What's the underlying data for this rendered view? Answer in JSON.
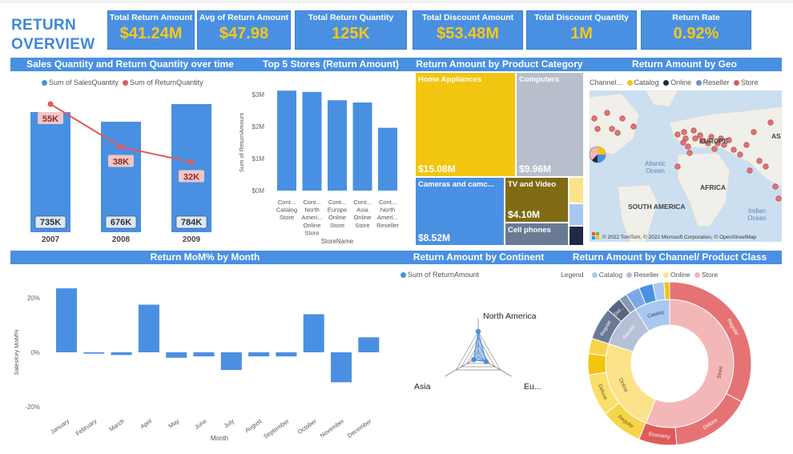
{
  "title": {
    "line1": "RETURN",
    "line2": "OVERVIEW"
  },
  "kpis": [
    {
      "label": "Total Return Amount",
      "value": "$41.24M"
    },
    {
      "label": "Avg of Return Amount",
      "value": "$47.98"
    },
    {
      "label": "Total Return Quantity",
      "value": "125K"
    },
    {
      "label": "Total Discount Amount",
      "value": "$53.48M"
    },
    {
      "label": "Total Discount Quantity",
      "value": "1M"
    },
    {
      "label": "Return Rate",
      "value": "0.92%"
    }
  ],
  "headers": {
    "sales_vs_return": "Sales Quantity and Return Quantity over time",
    "top_stores": "Top 5 Stores (Return Amount)",
    "by_category": "Return Amount by Product Category",
    "by_geo": "Return Amount by Geo",
    "mom": "Return MoM% by Month",
    "by_continent": "Return Amount by Continent",
    "by_channel": "Return Amount by Channel/ Product Class"
  },
  "colors": {
    "accent": "#4a90e2",
    "kpi_value": "#f7c71b",
    "sales": "#4a90e2",
    "returns": "#e05a5a"
  },
  "chart_data": [
    {
      "id": "sales_vs_return",
      "type": "bar",
      "legend": [
        "Sum of SalesQuantity",
        "Sum of ReturnQuantity"
      ],
      "categories": [
        "2007",
        "2008",
        "2009"
      ],
      "series": [
        {
          "name": "Sum of SalesQuantity",
          "values": [
            735,
            676,
            784
          ],
          "labels": [
            "735K",
            "676K",
            "784K"
          ],
          "type": "bar"
        },
        {
          "name": "Sum of ReturnQuantity",
          "values": [
            55,
            38,
            32
          ],
          "labels": [
            "55K",
            "38K",
            "32K"
          ],
          "type": "line"
        }
      ]
    },
    {
      "id": "top_stores",
      "type": "bar",
      "ylabel": "Sum of ReturnAmount",
      "xlabel": "StoreName",
      "yticks": [
        "$0M",
        "$1M",
        "$2M",
        "$3M"
      ],
      "ylim": [
        0,
        3.3
      ],
      "categories": [
        [
          "Cont...",
          "Catalog",
          "Store"
        ],
        [
          "Cont...",
          "North",
          "Ameri...",
          "Online",
          "Store"
        ],
        [
          "Cont...",
          "Europe",
          "Online",
          "Store"
        ],
        [
          "Cont...",
          "Asia",
          "Online",
          "Store"
        ],
        [
          "Cont...",
          "North",
          "Ameri...",
          "Reseller"
        ]
      ],
      "values": [
        3.12,
        3.08,
        2.82,
        2.75,
        1.96
      ]
    },
    {
      "id": "by_category",
      "type": "treemap",
      "items": [
        {
          "name": "Home Appliances",
          "value": "$15.08M",
          "color": "#f2c511"
        },
        {
          "name": "Computers",
          "value": "$9.96M",
          "color": "#b8bfcc"
        },
        {
          "name": "Cameras and camc...",
          "value": "$8.52M",
          "color": "#4a90e2"
        },
        {
          "name": "TV and Video",
          "value": "$4.10M",
          "color": "#806b14"
        },
        {
          "name": "Cell phones",
          "value": "",
          "color": "#6a7a94"
        }
      ]
    },
    {
      "id": "mom",
      "type": "bar",
      "ylabel": "SalesKey MoM%",
      "xlabel": "Month",
      "yticks": [
        "20%",
        "0%",
        "-20%"
      ],
      "ylim": [
        -20,
        25
      ],
      "categories": [
        "January",
        "February",
        "March",
        "April",
        "May",
        "June",
        "July",
        "August",
        "September",
        "October",
        "November",
        "December"
      ],
      "values": [
        23.5,
        -0.5,
        -1,
        17.5,
        -2,
        -1.5,
        -6.5,
        -1.5,
        -1.5,
        14,
        -11,
        5.5
      ]
    },
    {
      "id": "by_continent",
      "type": "radar",
      "legend": "Sum of ReturnAmount",
      "axes": [
        "North America",
        "Eu...",
        "Asia"
      ],
      "values": [
        26.5,
        9.5,
        5.3
      ]
    },
    {
      "id": "by_channel",
      "type": "sunburst",
      "legend_title": "Legend",
      "legend": [
        "Catalog",
        "Reseller",
        "Online",
        "Store"
      ],
      "inner": [
        {
          "name": "Store",
          "value": 56,
          "color": "#f4b7b7"
        },
        {
          "name": "Online",
          "value": 24,
          "color": "#fce38a"
        },
        {
          "name": "Reseller",
          "value": 11,
          "color": "#b6c0d6"
        },
        {
          "name": "Catalog",
          "value": 9,
          "color": "#a8c8ef"
        }
      ],
      "labels": [
        "Regular",
        "Deluxe",
        "Economy",
        "Store",
        "Online",
        "Regular",
        "Deluxe",
        "Reseller",
        "Del...",
        "Regular",
        "Catalog"
      ]
    }
  ],
  "map": {
    "legend_title": "Channel...",
    "legend": [
      "Catalog",
      "Online",
      "Reseller",
      "Store"
    ],
    "labels": [
      "EUROPE",
      "AFRICA",
      "SOUTH AMERICA",
      "AS"
    ],
    "oceans": [
      "Atlantic Ocean",
      "Indian Ocean"
    ],
    "attribution": "© 2022 TomTom, © 2022 Microsoft Corporation, © OpenStreetMap"
  }
}
